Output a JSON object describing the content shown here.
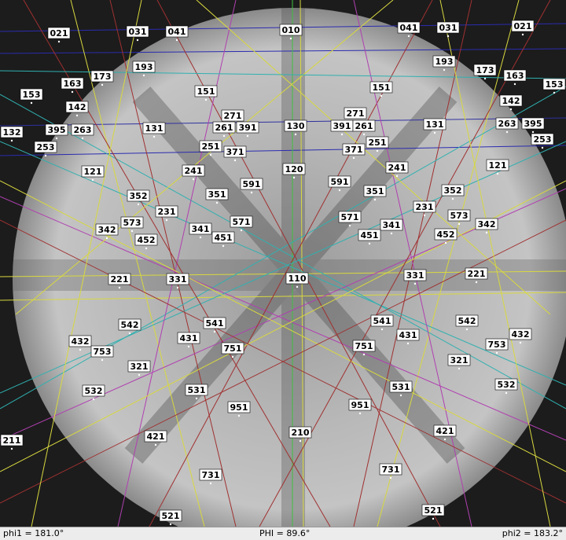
{
  "zone_axes": [
    "021",
    "031",
    "041",
    "010",
    "041",
    "031",
    "021",
    "193",
    "193",
    "173",
    "163",
    "153",
    "142",
    "151",
    "151",
    "173",
    "163",
    "153",
    "142",
    "271",
    "261",
    "391",
    "130",
    "391",
    "261",
    "271",
    "131",
    "131",
    "132",
    "395",
    "263",
    "263",
    "395",
    "253",
    "253",
    "251",
    "371",
    "371",
    "251",
    "121",
    "241",
    "120",
    "591",
    "591",
    "241",
    "121",
    "352",
    "351",
    "351",
    "352",
    "231",
    "573",
    "342",
    "452",
    "341",
    "571",
    "451",
    "571",
    "341",
    "451",
    "231",
    "573",
    "342",
    "452",
    "221",
    "331",
    "110",
    "331",
    "221",
    "542",
    "541",
    "431",
    "751",
    "432",
    "753",
    "321",
    "541",
    "431",
    "751",
    "542",
    "432",
    "753",
    "321",
    "532",
    "531",
    "951",
    "951",
    "531",
    "532",
    "211",
    "421",
    "210",
    "421",
    "731",
    "731",
    "521",
    "521"
  ],
  "status": {
    "phi1": "phi1 = 181.0°",
    "PHI": "PHI = 89.6°",
    "phi2": "phi2 = 183.2°"
  }
}
